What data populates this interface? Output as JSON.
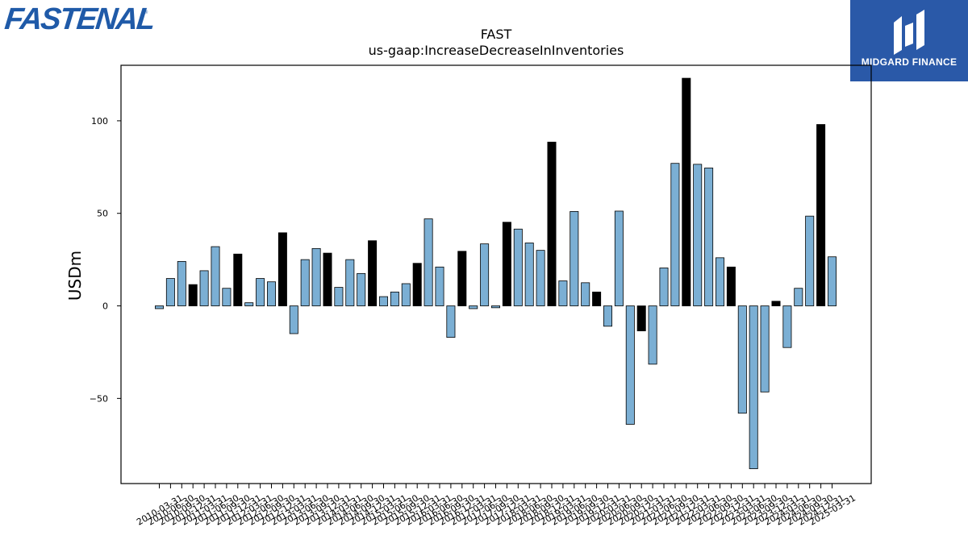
{
  "logos": {
    "left_text": "FASTENAL",
    "left_reg": "®",
    "right_text": "MIDGARD FINANCE"
  },
  "colors": {
    "bar_primary": "#7bafd4",
    "bar_highlight": "#000000",
    "logo_blue": "#1f5aa8",
    "badge_blue": "#2a59a8"
  },
  "chart_data": {
    "type": "bar",
    "title": "FAST",
    "subtitle": "us-gaap:IncreaseDecreaseInInventories",
    "ylabel": "USDm",
    "xlabel": "",
    "ylim": [
      -96,
      130
    ],
    "yticks": [
      -50,
      0,
      50,
      100
    ],
    "ytick_labels": [
      "−50",
      "0",
      "50",
      "100"
    ],
    "grid": false,
    "categories": [
      "2010-03-31",
      "2010-06-30",
      "2010-09-30",
      "2010-12-31",
      "2011-03-31",
      "2011-06-30",
      "2011-09-30",
      "2011-12-31",
      "2012-03-31",
      "2012-06-30",
      "2012-09-30",
      "2012-12-31",
      "2013-03-31",
      "2013-06-30",
      "2013-09-30",
      "2013-12-31",
      "2014-03-31",
      "2014-06-30",
      "2014-09-30",
      "2014-12-31",
      "2015-03-31",
      "2015-06-30",
      "2015-09-30",
      "2015-12-31",
      "2016-03-31",
      "2016-06-30",
      "2016-09-30",
      "2016-12-31",
      "2017-03-31",
      "2017-06-30",
      "2017-09-30",
      "2017-12-31",
      "2018-03-31",
      "2018-06-30",
      "2018-09-30",
      "2018-12-31",
      "2019-03-31",
      "2019-06-30",
      "2019-09-30",
      "2019-12-31",
      "2020-03-31",
      "2020-06-30",
      "2020-09-30",
      "2020-12-31",
      "2021-03-31",
      "2021-06-30",
      "2021-09-30",
      "2021-12-31",
      "2022-03-31",
      "2022-06-30",
      "2022-09-30",
      "2022-12-31",
      "2023-03-31",
      "2023-06-30",
      "2023-09-30",
      "2023-12-31",
      "2024-03-31",
      "2024-06-30",
      "2024-09-30",
      "2024-12-31",
      "2025-03-31"
    ],
    "values": [
      -1.5,
      14.8,
      24,
      11.5,
      19,
      32,
      9.5,
      28,
      1.7,
      14.8,
      13,
      39.5,
      -15,
      25,
      31,
      28.5,
      10,
      25,
      17.5,
      35.2,
      5,
      7.5,
      12,
      23,
      47,
      21,
      -17,
      29.5,
      -1.5,
      33.5,
      -1,
      45.2,
      41.5,
      34,
      30,
      88.5,
      13.5,
      51,
      12.5,
      7.5,
      -11,
      51.2,
      -64,
      -13.5,
      -31.5,
      20.5,
      77,
      123,
      76.5,
      74.5,
      26,
      21,
      -58,
      -88,
      -46.5,
      2.5,
      -22.5,
      9.5,
      48.5,
      98,
      26.5
    ],
    "highlight_indices": [
      3,
      7,
      11,
      15,
      19,
      23,
      27,
      31,
      35,
      39,
      43,
      47,
      51,
      55,
      59
    ]
  }
}
